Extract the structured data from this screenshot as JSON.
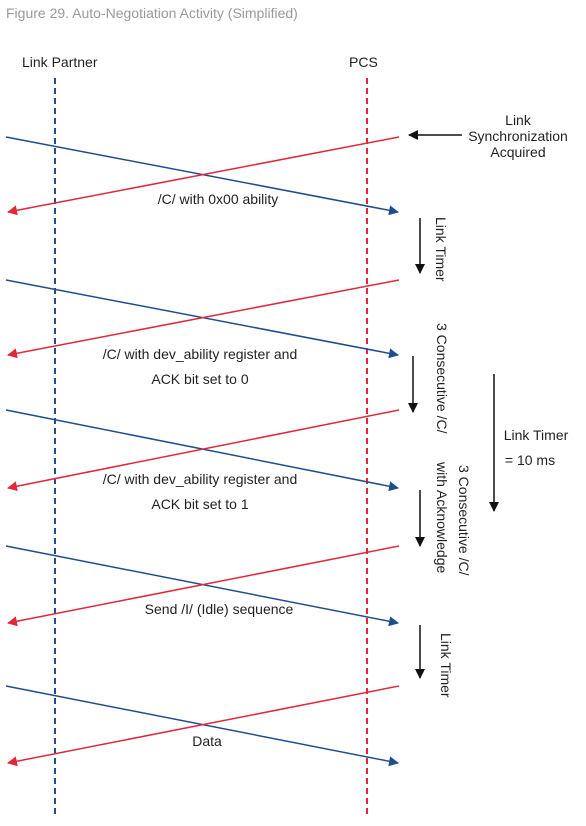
{
  "caption": "Figure 29. Auto-Negotiation Activity (Simplified)",
  "columns": {
    "left": "Link Partner",
    "right": "PCS"
  },
  "colors": {
    "link_partner": "#1f4e8c",
    "pcs": "#e0283a",
    "text": "#231f20",
    "caption": "#9a9a9a"
  },
  "events": {
    "sync_line1": "Link",
    "sync_line2": "Synchronization",
    "sync_line3": "Acquired"
  },
  "messages": {
    "m1": "/C/ with 0x00 ability",
    "m2a": "/C/ with dev_ability register and",
    "m2b": "ACK bit set to 0",
    "m3a": "/C/ with dev_ability register and",
    "m3b": "ACK bit set to 1",
    "m4": "Send /I/ (Idle) sequence",
    "m5": "Data"
  },
  "timers": {
    "t1": "Link Timer",
    "t2": "3 Consecutive /C/",
    "t3a": "3 Consecutive /C/",
    "t3b": "with Acknowledge",
    "t4": "Link Timer",
    "total_a": "Link Timer",
    "total_b": "= 10 ms"
  }
}
